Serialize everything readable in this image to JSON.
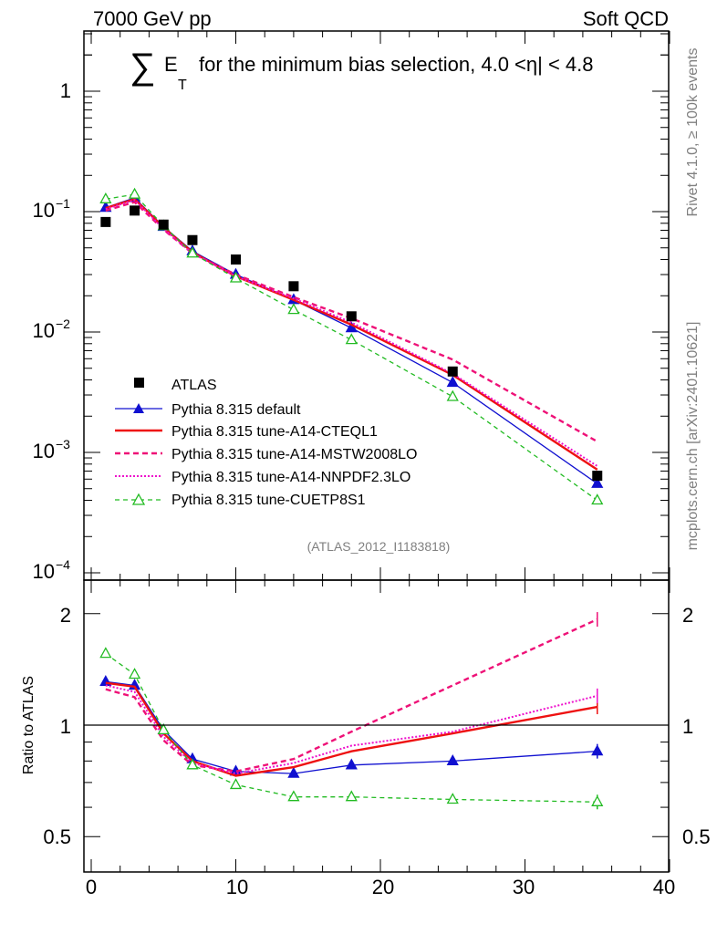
{
  "header": {
    "energy": "7000 GeV pp",
    "process": "Soft QCD",
    "rivet": "Rivet 4.1.0, ≥ 100k events",
    "site": "mcplots.cern.ch [arXiv:2401.10621]",
    "analysis": "(ATLAS_2012_I1183818)"
  },
  "title": {
    "sum": "∑",
    "e": "E",
    "t": "T",
    "text": "for the minimum bias selection, 4.0 <η| < 4.8"
  },
  "ratio_ylabel": "Ratio to ATLAS",
  "tick_labels": {
    "main": [
      "1",
      "10",
      "10",
      "10",
      "10"
    ],
    "main_exp": [
      "",
      "−1",
      "−2",
      "−3",
      "−4"
    ],
    "ratio_left": [
      "2",
      "1",
      "0.5"
    ],
    "ratio_right": [
      "2",
      "1",
      "0.5"
    ],
    "x": [
      "0",
      "10",
      "20",
      "30",
      "40"
    ]
  },
  "legend": [
    {
      "label": "ATLAS"
    },
    {
      "label": "Pythia 8.315 default"
    },
    {
      "label": "Pythia 8.315 tune-A14-CTEQL1"
    },
    {
      "label": "Pythia 8.315 tune-A14-MSTW2008LO"
    },
    {
      "label": "Pythia 8.315 tune-A14-NNPDF2.3LO"
    },
    {
      "label": "Pythia 8.315 tune-CUETP8S1"
    }
  ],
  "chart_data": {
    "type": "line",
    "title": "∑ E_T for the minimum bias selection, 4.0 <η| < 4.8",
    "xlabel": "",
    "ylabel": "",
    "xlim": [
      -1,
      40
    ],
    "ylim_log": [
      0.0001,
      3
    ],
    "ratio_ylim": [
      0.4,
      2.3
    ],
    "x": [
      1,
      3,
      5,
      7,
      10,
      14,
      18,
      25,
      35
    ],
    "data": {
      "name": "ATLAS",
      "values": [
        0.082,
        0.102,
        0.078,
        0.058,
        0.04,
        0.024,
        0.0135,
        0.0047,
        0.00064
      ]
    },
    "series": [
      {
        "name": "Pythia 8.315 default",
        "color": "#1010d0",
        "style": "solid",
        "values": [
          0.108,
          0.13,
          0.075,
          0.047,
          0.03,
          0.0185,
          0.0108,
          0.0038,
          0.00055
        ],
        "ratio": [
          1.31,
          1.28,
          0.97,
          0.81,
          0.75,
          0.74,
          0.78,
          0.8,
          0.85
        ]
      },
      {
        "name": "Pythia 8.315 tune-A14-CTEQL1",
        "color": "#ee1111",
        "style": "solid",
        "values": [
          0.107,
          0.127,
          0.074,
          0.046,
          0.029,
          0.0185,
          0.0115,
          0.0044,
          0.00072
        ],
        "ratio": [
          1.3,
          1.27,
          0.95,
          0.8,
          0.73,
          0.77,
          0.85,
          0.95,
          1.12
        ]
      },
      {
        "name": "Pythia 8.315 tune-A14-MSTW2008LO",
        "color": "#ee1177",
        "style": "dashed",
        "values": [
          0.102,
          0.12,
          0.071,
          0.045,
          0.03,
          0.0195,
          0.013,
          0.0059,
          0.00123
        ],
        "ratio": [
          1.25,
          1.19,
          0.91,
          0.78,
          0.75,
          0.81,
          0.96,
          1.28,
          1.93
        ]
      },
      {
        "name": "Pythia 8.315 tune-A14-NNPDF2.3LO",
        "color": "#ee11cc",
        "style": "dotted",
        "values": [
          0.105,
          0.125,
          0.072,
          0.045,
          0.029,
          0.019,
          0.012,
          0.0045,
          0.00077
        ],
        "ratio": [
          1.28,
          1.23,
          0.93,
          0.79,
          0.74,
          0.79,
          0.88,
          0.96,
          1.2
        ]
      },
      {
        "name": "Pythia 8.315 tune-CUETP8S1",
        "color": "#22bb22",
        "style": "dashed",
        "values": [
          0.127,
          0.139,
          0.076,
          0.045,
          0.028,
          0.0153,
          0.0086,
          0.0029,
          0.0004
        ],
        "ratio": [
          1.56,
          1.37,
          0.97,
          0.78,
          0.69,
          0.64,
          0.64,
          0.63,
          0.62
        ]
      }
    ]
  }
}
